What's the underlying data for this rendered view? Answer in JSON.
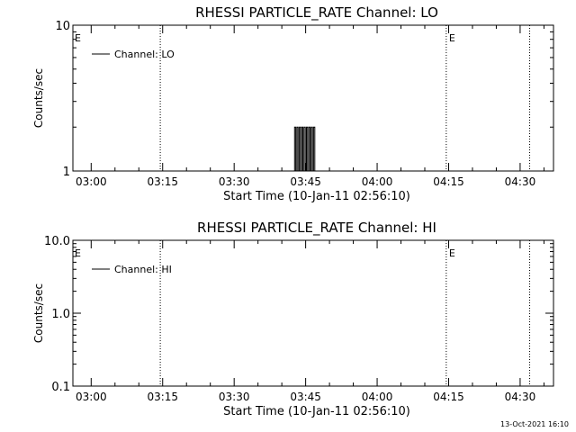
{
  "footer": {
    "timestamp": "13-Oct-2021 16:10"
  },
  "chart_data": [
    {
      "type": "line",
      "title": "RHESSI  PARTICLE_RATE Channel:  LO",
      "xlabel": "Start Time (10-Jan-11 02:56:10)",
      "ylabel": "Counts/sec",
      "yscale": "log",
      "ylim": [
        1,
        10
      ],
      "xlim": [
        "02:56:10",
        "04:37:00"
      ],
      "y_ticks": [
        "1",
        "10"
      ],
      "x_ticks": [
        "03:00",
        "03:15",
        "03:30",
        "03:45",
        "04:00",
        "04:15",
        "04:30"
      ],
      "legend": {
        "position": "top-left",
        "entries": [
          "Channel: LO"
        ]
      },
      "markers": [
        {
          "time": "03:14:30",
          "label": "E"
        },
        {
          "time": "04:14:30",
          "label": "E"
        },
        {
          "time": "04:32:00",
          "label": ""
        }
      ],
      "series": [
        {
          "name": "Channel: LO",
          "points": [
            [
              "03:42:40",
              1
            ],
            [
              "03:42:40",
              2
            ],
            [
              "03:42:55",
              2
            ],
            [
              "03:42:55",
              1
            ],
            [
              "03:43:10",
              1
            ],
            [
              "03:43:10",
              2
            ],
            [
              "03:43:25",
              2
            ],
            [
              "03:43:25",
              1
            ],
            [
              "03:43:40",
              1
            ],
            [
              "03:43:40",
              2
            ],
            [
              "03:43:55",
              2
            ],
            [
              "03:43:55",
              1
            ],
            [
              "03:44:10",
              1
            ],
            [
              "03:44:10",
              2
            ],
            [
              "03:44:25",
              2
            ],
            [
              "03:44:25",
              1
            ],
            [
              "03:44:40",
              1
            ],
            [
              "03:44:40",
              2
            ],
            [
              "03:44:55",
              2
            ],
            [
              "03:44:55",
              1
            ],
            [
              "03:45:10",
              1
            ],
            [
              "03:45:10",
              2
            ],
            [
              "03:45:25",
              2
            ],
            [
              "03:45:25",
              1
            ],
            [
              "03:45:40",
              1
            ],
            [
              "03:45:40",
              2
            ],
            [
              "03:45:55",
              2
            ],
            [
              "03:45:55",
              1
            ],
            [
              "03:46:10",
              1
            ],
            [
              "03:46:10",
              2
            ],
            [
              "03:46:25",
              2
            ],
            [
              "03:46:25",
              1
            ],
            [
              "03:46:40",
              1
            ],
            [
              "03:46:40",
              2
            ],
            [
              "03:46:55",
              2
            ],
            [
              "03:46:55",
              1
            ]
          ]
        }
      ]
    },
    {
      "type": "line",
      "title": "RHESSI  PARTICLE_RATE Channel:  HI",
      "xlabel": "Start Time (10-Jan-11 02:56:10)",
      "ylabel": "Counts/sec",
      "yscale": "log",
      "ylim": [
        0.1,
        10
      ],
      "xlim": [
        "02:56:10",
        "04:37:00"
      ],
      "y_ticks": [
        "0.1",
        "1.0",
        "10.0"
      ],
      "x_ticks": [
        "03:00",
        "03:15",
        "03:30",
        "03:45",
        "04:00",
        "04:15",
        "04:30"
      ],
      "legend": {
        "position": "top-left",
        "entries": [
          "Channel: HI"
        ]
      },
      "markers": [
        {
          "time": "03:14:30",
          "label": "E"
        },
        {
          "time": "04:14:30",
          "label": "E"
        },
        {
          "time": "04:32:00",
          "label": ""
        }
      ],
      "series": [
        {
          "name": "Channel: HI",
          "points": []
        }
      ]
    }
  ]
}
